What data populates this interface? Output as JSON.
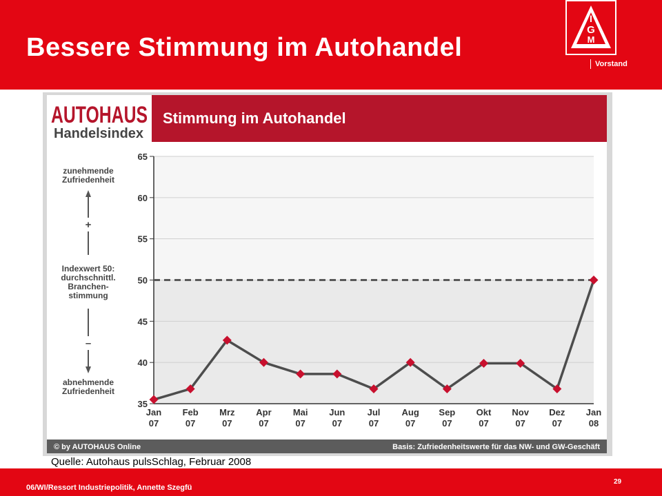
{
  "slide": {
    "title": "Bessere Stimmung im Autohandel",
    "org_label": "Vorstand",
    "logo_text": "IGM",
    "source": "Quelle: Autohaus pulsSchlag, Februar 2008",
    "footer": "06/WI/Ressort Industriepolitik, Annette Szegfü",
    "page_number": "29"
  },
  "chart_data": {
    "type": "line",
    "brand_line1": "AUTOHAUS",
    "brand_line2": "Handelsindex",
    "title": "Stimmung im Autohandel",
    "categories": [
      [
        "Jan",
        "07"
      ],
      [
        "Feb",
        "07"
      ],
      [
        "Mrz",
        "07"
      ],
      [
        "Apr",
        "07"
      ],
      [
        "Mai",
        "07"
      ],
      [
        "Jun",
        "07"
      ],
      [
        "Jul",
        "07"
      ],
      [
        "Aug",
        "07"
      ],
      [
        "Sep",
        "07"
      ],
      [
        "Okt",
        "07"
      ],
      [
        "Nov",
        "07"
      ],
      [
        "Dez",
        "07"
      ],
      [
        "Jan",
        "08"
      ]
    ],
    "series": [
      {
        "values": [
          35.5,
          36.8,
          42.7,
          40.0,
          38.6,
          38.6,
          36.8,
          40.0,
          36.8,
          39.9,
          39.9,
          36.8,
          50.0
        ]
      }
    ],
    "ylim": [
      35,
      65
    ],
    "yticks": [
      35,
      40,
      45,
      50,
      55,
      60,
      65
    ],
    "reference_line": 50,
    "grid": true,
    "left_annotation": {
      "top_label": [
        "zunehmende",
        "Zufriedenheit"
      ],
      "plus": "+",
      "middle_label": [
        "Indexwert 50:",
        "durchschnittl.",
        "Branchen-",
        "stimmung"
      ],
      "minus": "–",
      "bottom_label": [
        "abnehmende",
        "Zufriedenheit"
      ]
    },
    "credit": "© by AUTOHAUS Online",
    "basis": "Basis: Zufriedenheitswerte für das NW- und GW-Geschäft",
    "colors": {
      "header": "#b5152b",
      "marker": "#c8102e",
      "line": "#4d4d4d",
      "reference": "#595959",
      "brand": "#b5152b",
      "footer_bar": "#5c5c5c"
    }
  }
}
